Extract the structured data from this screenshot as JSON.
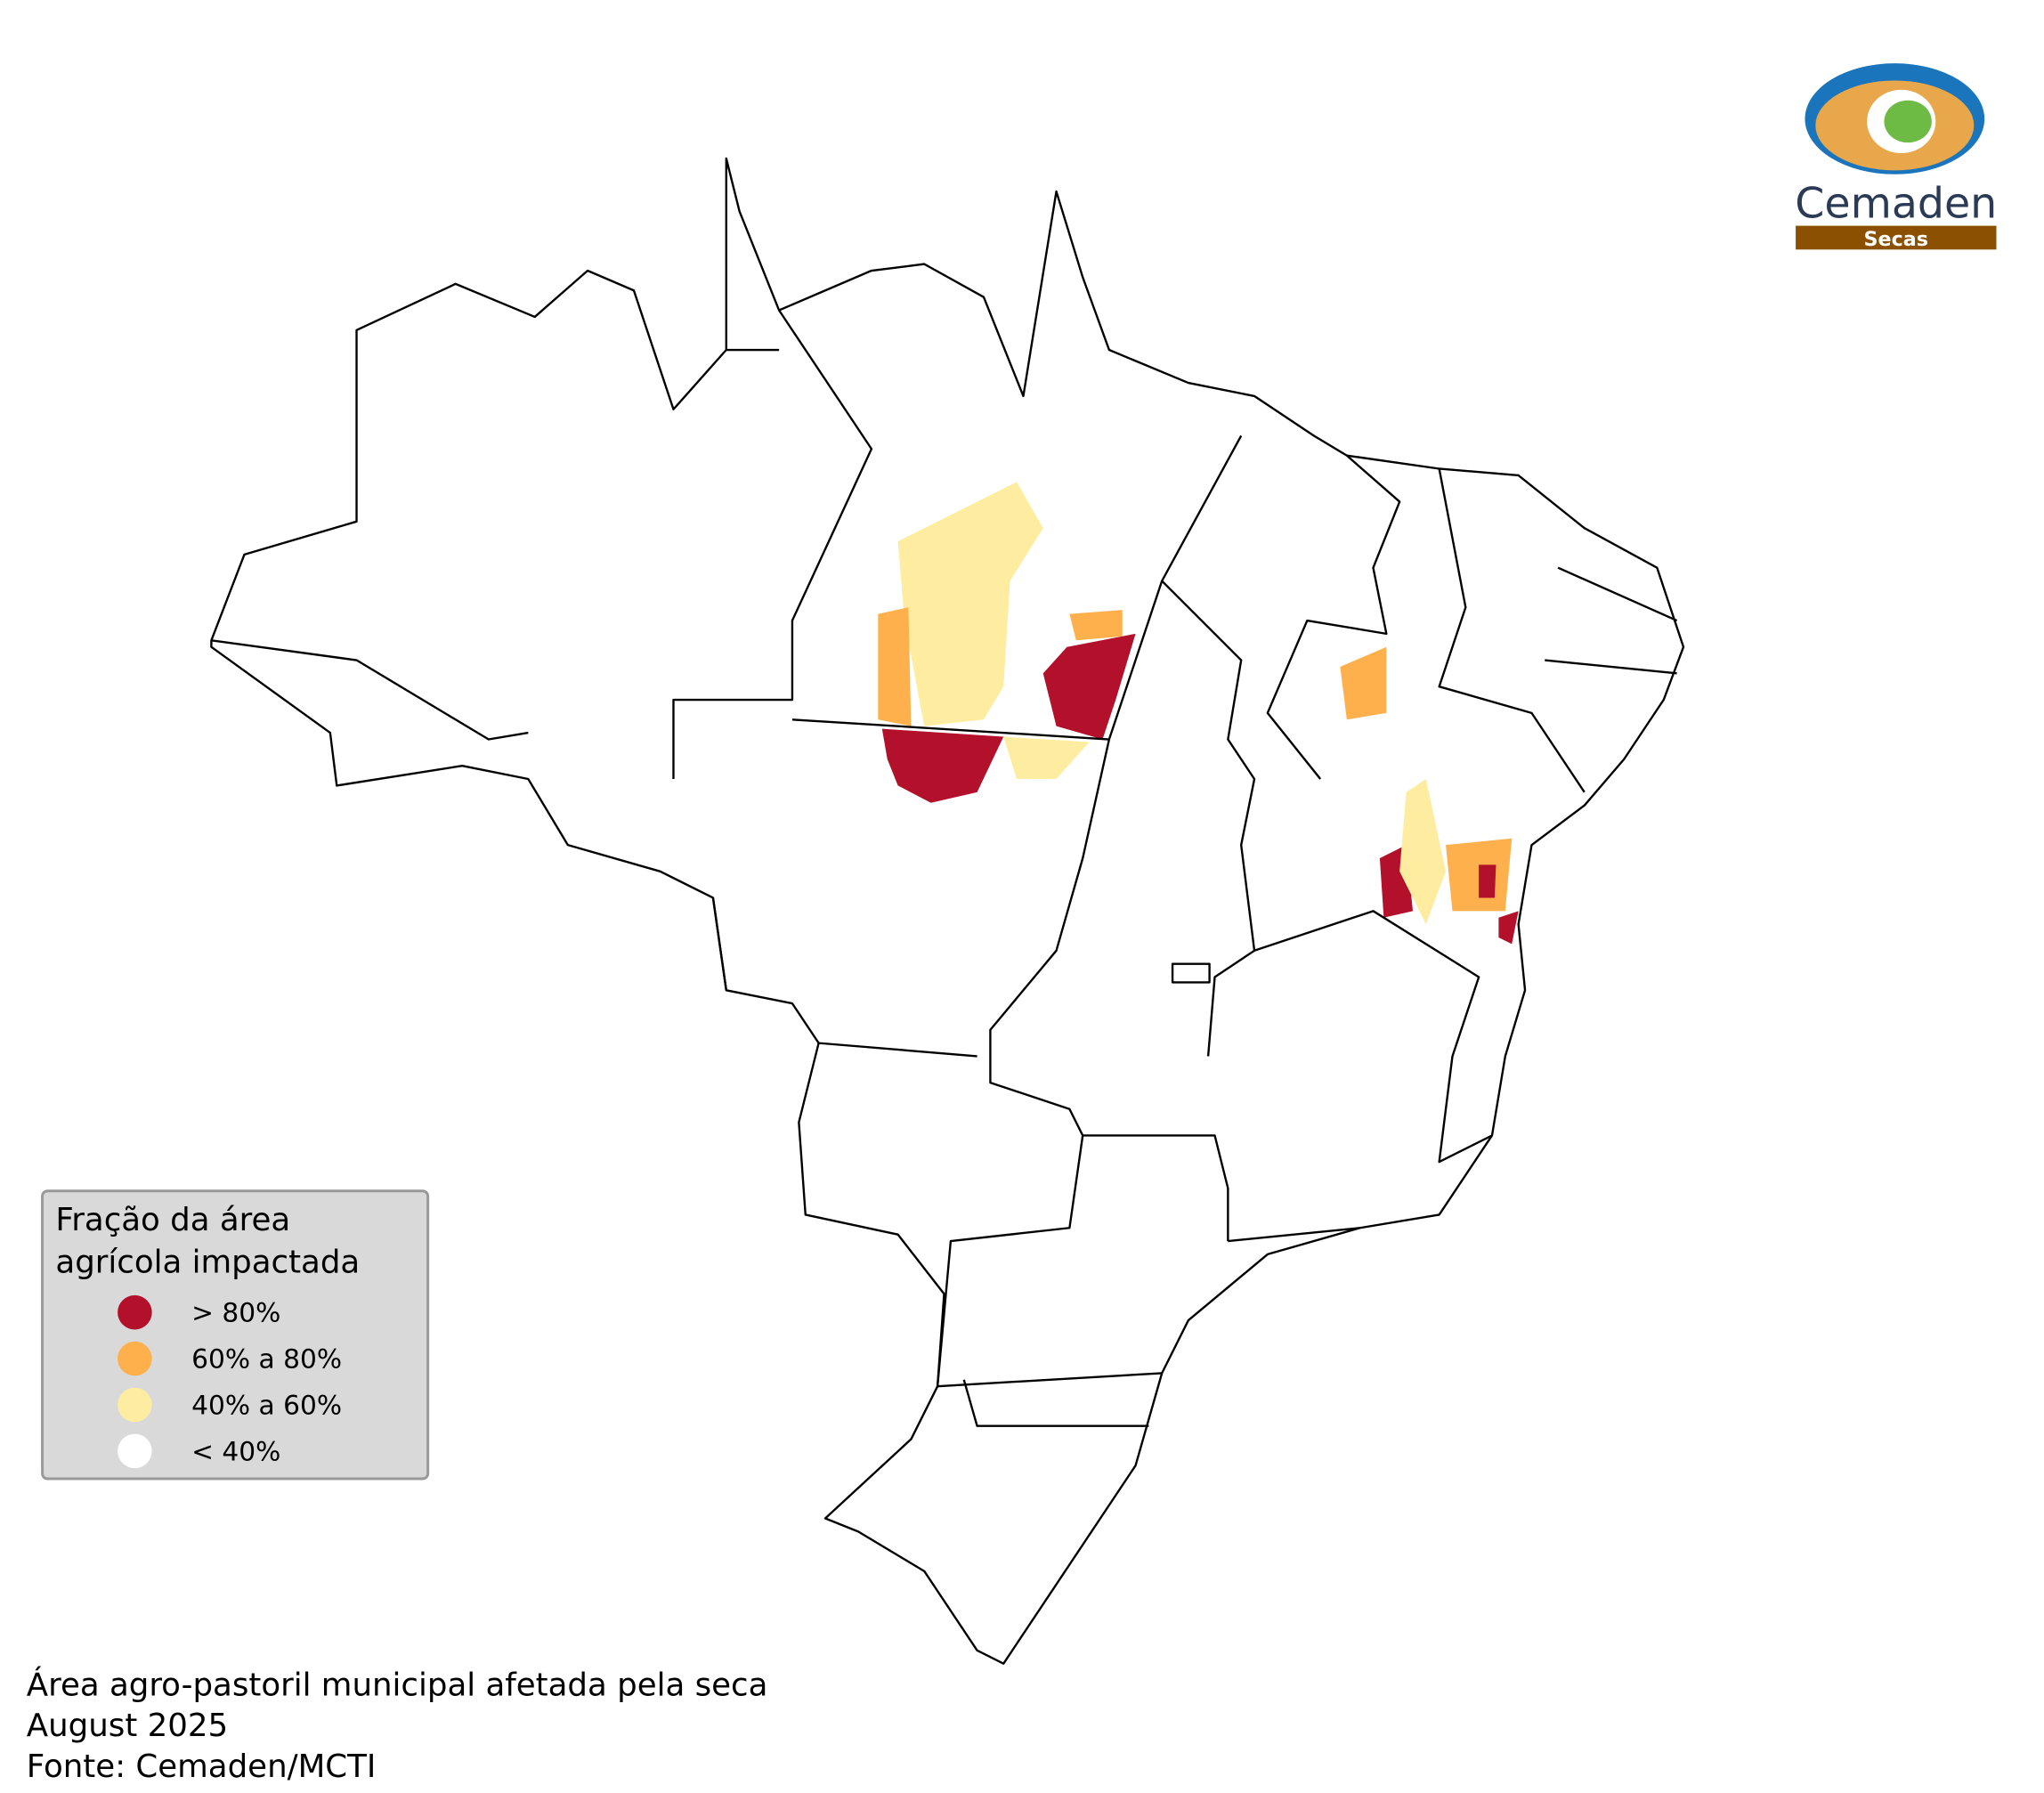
{
  "legend": {
    "title_lines": [
      "Fração da área",
      "agrícola impactada"
    ],
    "items": [
      {
        "label": "> 80%",
        "color": "#b2102b"
      },
      {
        "label": "60% a 80%",
        "color": "#fdb04c"
      },
      {
        "label": "40% a 60%",
        "color": "#feeda0"
      },
      {
        "label": "< 40%",
        "color": "#ffffff"
      }
    ]
  },
  "footer": [
    "Área agro-pastoril municipal afetada pela seca",
    "August 2025",
    "Fonte: Cemaden/MCTI"
  ],
  "logo": {
    "name": "Cemaden",
    "subtitle": "Secas"
  }
}
